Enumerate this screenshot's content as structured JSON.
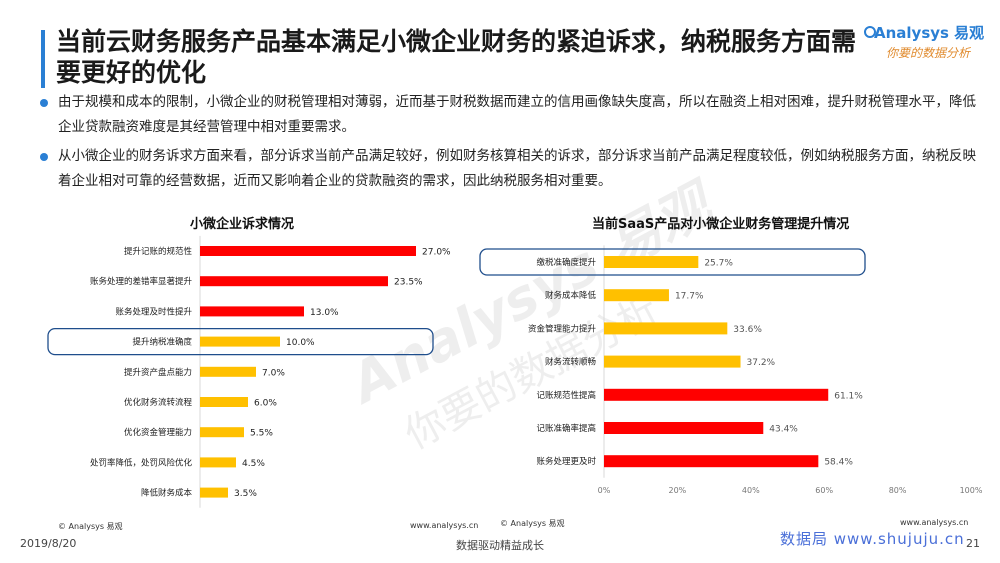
{
  "colors": {
    "accent": "#2a7fd4",
    "red": "#ff0000",
    "yellow": "#ffc000",
    "highlight_box": "#1f4e8c",
    "axis": "#d9d9d9"
  },
  "header": {
    "title": "当前云财务服务产品基本满足小微企业财务的紧迫诉求，纳税服务方面需要更好的优化",
    "logo_main": "Analysys 易观",
    "logo_sub": "你要的数据分析"
  },
  "bullets": [
    "由于规模和成本的限制，小微企业的财税管理相对薄弱，近而基于财税数据而建立的信用画像缺失度高，所以在融资上相对困难，提升财税管理水平，降低企业贷款融资难度是其经营管理中相对重要需求。",
    "从小微企业的财务诉求方面来看，部分诉求当前产品满足较好，例如财务核算相关的诉求，部分诉求当前产品满足程度较低，例如纳税服务方面，纳税反映着企业相对可靠的经营数据，近而又影响着企业的贷款融资的需求，因此纳税服务相对重要。"
  ],
  "chart_data": [
    {
      "type": "bar",
      "orientation": "horizontal",
      "title": "小微企业诉求情况",
      "categories": [
        "提升记账的规范性",
        "账务处理的差错率显著提升",
        "账务处理及时性提升",
        "提升纳税准确度",
        "提升资产盘点能力",
        "优化财务流转流程",
        "优化资金管理能力",
        "处罚率降低，处罚风险优化",
        "降低财务成本"
      ],
      "values": [
        27.0,
        23.5,
        13.0,
        10.0,
        7.0,
        6.0,
        5.5,
        4.5,
        3.5
      ],
      "value_labels": [
        "27.0%",
        "23.5%",
        "13.0%",
        "10.0%",
        "7.0%",
        "6.0%",
        "5.5%",
        "4.5%",
        "3.5%"
      ],
      "bar_colors": [
        "red",
        "red",
        "red",
        "yellow",
        "yellow",
        "yellow",
        "yellow",
        "yellow",
        "yellow"
      ],
      "highlighted": "提升纳税准确度",
      "source": "© Analysys 易观",
      "url": "www.analysys.cn"
    },
    {
      "type": "bar",
      "orientation": "horizontal",
      "title": "当前SaaS产品对小微企业财务管理提升情况",
      "categories": [
        "缴税准确度提升",
        "财务成本降低",
        "资金管理能力提升",
        "财务流转顺畅",
        "记账规范性提高",
        "记账准确率提高",
        "账务处理更及时"
      ],
      "values": [
        25.7,
        17.7,
        33.6,
        37.2,
        61.1,
        43.4,
        58.4
      ],
      "value_labels": [
        "25.7%",
        "17.7%",
        "33.6%",
        "37.2%",
        "61.1%",
        "43.4%",
        "58.4%"
      ],
      "bar_colors": [
        "yellow",
        "yellow",
        "yellow",
        "yellow",
        "red",
        "red",
        "red"
      ],
      "highlighted": "缴税准确度提升",
      "xlim": [
        0,
        100
      ],
      "x_ticks": [
        "0%",
        "20%",
        "40%",
        "60%",
        "80%",
        "100%"
      ],
      "source": "© Analysys 易观",
      "url": "www.analysys.cn"
    }
  ],
  "footer": {
    "date": "2019/8/20",
    "slogan": "数据驱动精益成长",
    "page_number": "21",
    "watermark": "数据局 www.shujuju.cn"
  },
  "background_watermark": {
    "text_en": "Analysys 易观",
    "text_cn": "你要的数据分析"
  }
}
